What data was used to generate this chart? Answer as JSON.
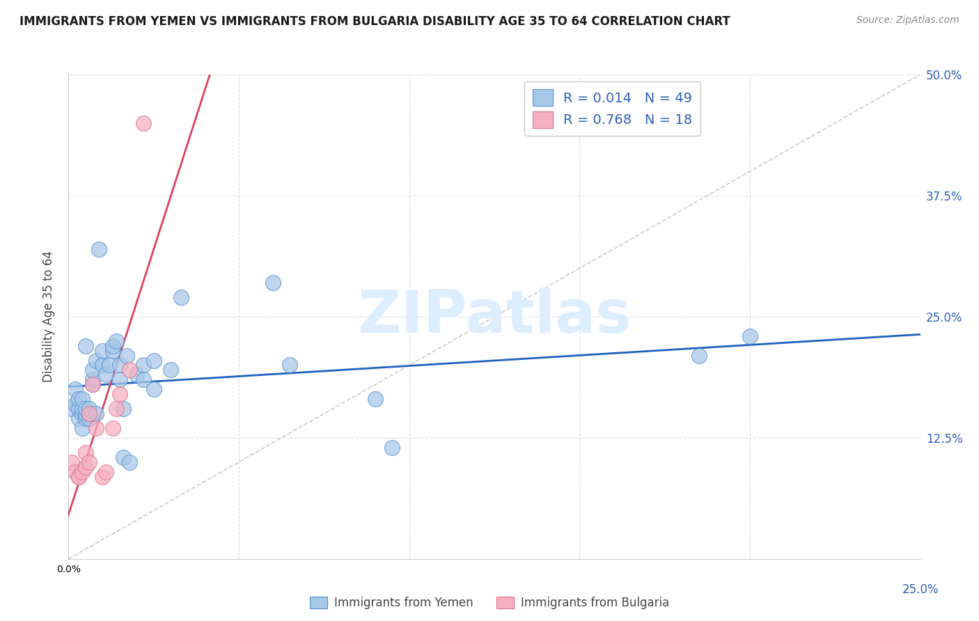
{
  "title": "IMMIGRANTS FROM YEMEN VS IMMIGRANTS FROM BULGARIA DISABILITY AGE 35 TO 64 CORRELATION CHART",
  "source": "Source: ZipAtlas.com",
  "ylabel": "Disability Age 35 to 64",
  "xlim": [
    0,
    0.25
  ],
  "ylim": [
    0,
    0.5
  ],
  "r_yemen": 0.014,
  "n_yemen": 49,
  "r_bulgaria": 0.768,
  "n_bulgaria": 18,
  "legend_label_yemen": "Immigrants from Yemen",
  "legend_label_bulgaria": "Immigrants from Bulgaria",
  "color_yemen": "#a8c8e8",
  "color_bulgaria": "#f5b0c0",
  "edge_color_yemen": "#5090d0",
  "edge_color_bulgaria": "#e07090",
  "trend_color_yemen": "#2060c0",
  "trend_color_bulgaria": "#e04060",
  "ref_line_color": "#cccccc",
  "grid_color": "#dddddd",
  "watermark": "ZIPatlas",
  "watermark_color": "#ddeeff",
  "yemen_x": [
    0.001,
    0.002,
    0.002,
    0.003,
    0.003,
    0.003,
    0.004,
    0.004,
    0.004,
    0.004,
    0.005,
    0.005,
    0.005,
    0.005,
    0.006,
    0.006,
    0.006,
    0.007,
    0.007,
    0.007,
    0.008,
    0.008,
    0.009,
    0.01,
    0.01,
    0.011,
    0.012,
    0.013,
    0.013,
    0.014,
    0.015,
    0.015,
    0.016,
    0.016,
    0.017,
    0.018,
    0.02,
    0.022,
    0.022,
    0.025,
    0.025,
    0.03,
    0.033,
    0.06,
    0.065,
    0.09,
    0.095,
    0.185,
    0.2
  ],
  "yemen_y": [
    0.155,
    0.16,
    0.175,
    0.145,
    0.155,
    0.165,
    0.135,
    0.15,
    0.155,
    0.165,
    0.145,
    0.15,
    0.155,
    0.22,
    0.145,
    0.15,
    0.155,
    0.18,
    0.185,
    0.195,
    0.15,
    0.205,
    0.32,
    0.2,
    0.215,
    0.19,
    0.2,
    0.215,
    0.22,
    0.225,
    0.185,
    0.2,
    0.105,
    0.155,
    0.21,
    0.1,
    0.19,
    0.185,
    0.2,
    0.175,
    0.205,
    0.195,
    0.27,
    0.285,
    0.2,
    0.165,
    0.115,
    0.21,
    0.23
  ],
  "bulgaria_x": [
    0.001,
    0.002,
    0.003,
    0.003,
    0.004,
    0.005,
    0.005,
    0.006,
    0.006,
    0.007,
    0.008,
    0.01,
    0.011,
    0.013,
    0.014,
    0.015,
    0.018,
    0.022
  ],
  "bulgaria_y": [
    0.1,
    0.09,
    0.085,
    0.085,
    0.09,
    0.095,
    0.11,
    0.1,
    0.15,
    0.18,
    0.135,
    0.085,
    0.09,
    0.135,
    0.155,
    0.17,
    0.195,
    0.45
  ]
}
